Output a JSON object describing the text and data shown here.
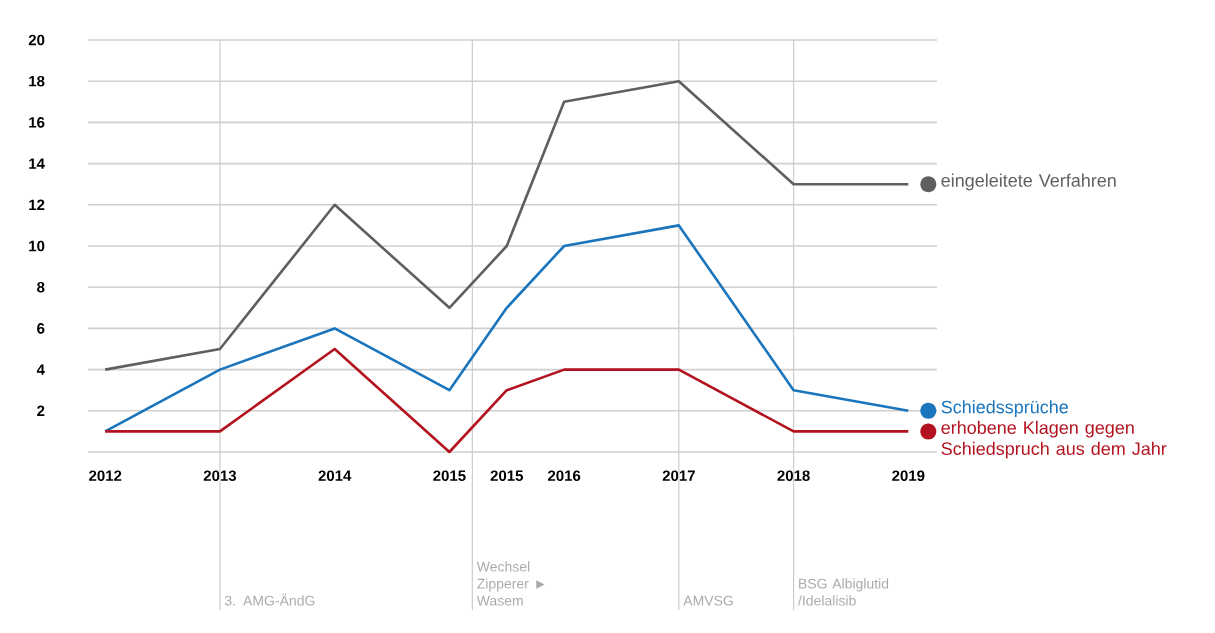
{
  "chart_data": {
    "type": "line",
    "x": [
      2012,
      2013,
      2014,
      2015,
      2015.5,
      2016,
      2017,
      2018,
      2019
    ],
    "series": [
      {
        "name": "eingeleitete Verfahren",
        "color": "#5f5f5f",
        "values": [
          4,
          5,
          12,
          7,
          10,
          17,
          18,
          13,
          13
        ]
      },
      {
        "name": "Schiedssprüche",
        "color": "#1a75bc",
        "values": [
          1,
          4,
          6,
          3,
          7,
          10,
          11,
          3,
          2
        ]
      },
      {
        "name": "erhobene Klagen gegen Schiedspruch aus dem Jahr",
        "color": "#b3121f",
        "values": [
          1,
          1,
          5,
          0,
          3,
          4,
          4,
          1,
          1
        ]
      }
    ],
    "xlim": [
      2011.85,
      2019.25
    ],
    "xticks": [
      2012,
      2013,
      2014,
      2015,
      {
        "value": 2015.5,
        "label": "2015"
      },
      2016,
      2017,
      2018,
      2019
    ],
    "ylim": [
      0,
      20
    ],
    "yticks": [
      {
        "value": 0,
        "label": null
      },
      2,
      4,
      6,
      8,
      10,
      12,
      14,
      16,
      18,
      20
    ],
    "ref_lines": [
      {
        "axis": "x",
        "value": 2013,
        "label": "3. AMG-ÄndG",
        "color": "#cccccc"
      },
      {
        "axis": "x",
        "value": 2015.2,
        "label": "Wechsel Zipperer ► Wasem",
        "color": "#cccccc"
      },
      {
        "axis": "x",
        "value": 2017,
        "label": "AMVSG",
        "color": "#cccccc"
      },
      {
        "axis": "x",
        "value": 2018,
        "label": "BSG Albiglutid /Idelalisib",
        "color": "#cccccc"
      }
    ],
    "grid": "y",
    "legend": "right",
    "marker": "none",
    "line_style": "solid"
  }
}
